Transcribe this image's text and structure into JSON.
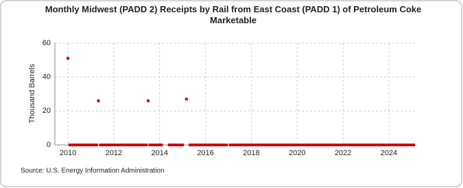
{
  "chart_data": {
    "type": "scatter",
    "title": "Monthly Midwest (PADD 2) Receipts by Rail from East Coast (PADD 1) of Petroleum Coke Marketable",
    "y_label": "Thousand Barrels",
    "source": "Source: U.S. Energy Information Administration",
    "color": "#cc0000",
    "grid": true,
    "xlim": [
      2009.43,
      2025.2
    ],
    "xticks": [
      2010,
      2012,
      2014,
      2016,
      2018,
      2020,
      2022,
      2024
    ],
    "ylim": [
      0,
      60
    ],
    "yticks": [
      0,
      20,
      40,
      60
    ],
    "x": [
      2010,
      2010.08,
      2010.17,
      2010.25,
      2010.33,
      2010.42,
      2010.5,
      2010.58,
      2010.67,
      2010.75,
      2010.83,
      2010.92,
      2011,
      2011.08,
      2011.17,
      2011.25,
      2011.33,
      2011.42,
      2011.5,
      2011.58,
      2011.67,
      2011.75,
      2011.83,
      2011.92,
      2012,
      2012.08,
      2012.17,
      2012.25,
      2012.33,
      2012.42,
      2012.5,
      2012.58,
      2012.67,
      2012.75,
      2012.83,
      2012.92,
      2013,
      2013.08,
      2013.17,
      2013.25,
      2013.33,
      2013.42,
      2013.5,
      2013.58,
      2013.67,
      2013.75,
      2013.83,
      2013.92,
      2014,
      2014.08,
      2014.42,
      2014.5,
      2014.58,
      2014.67,
      2014.75,
      2014.83,
      2014.92,
      2015,
      2015.17,
      2015.33,
      2015.42,
      2015.5,
      2015.58,
      2015.67,
      2015.75,
      2015.83,
      2015.92,
      2016,
      2016.08,
      2016.17,
      2016.25,
      2016.33,
      2016.42,
      2016.5,
      2016.58,
      2016.67,
      2016.75,
      2016.83,
      2016.92,
      2017.08,
      2017.17,
      2017.25,
      2017.33,
      2017.42,
      2017.5,
      2017.58,
      2017.67,
      2017.75,
      2017.83,
      2017.92,
      2018,
      2018.08,
      2018.17,
      2018.25,
      2018.33,
      2018.42,
      2018.5,
      2018.58,
      2018.67,
      2018.75,
      2018.83,
      2018.92,
      2019,
      2019.08,
      2019.17,
      2019.25,
      2019.33,
      2019.42,
      2019.5,
      2019.58,
      2019.67,
      2019.75,
      2019.83,
      2019.92,
      2020,
      2020.08,
      2020.17,
      2020.25,
      2020.33,
      2020.42,
      2020.5,
      2020.58,
      2020.67,
      2020.75,
      2020.83,
      2020.92,
      2021,
      2021.08,
      2021.17,
      2021.25,
      2021.33,
      2021.42,
      2021.5,
      2021.58,
      2021.67,
      2021.75,
      2021.83,
      2021.92,
      2022,
      2022.08,
      2022.17,
      2022.25,
      2022.33,
      2022.42,
      2022.5,
      2022.58,
      2022.67,
      2022.75,
      2022.83,
      2022.92,
      2023,
      2023.08,
      2023.17,
      2023.25,
      2023.33,
      2023.42,
      2023.5,
      2023.58,
      2023.67,
      2023.75,
      2023.83,
      2023.92,
      2024,
      2024.08,
      2024.17,
      2024.25,
      2024.33,
      2024.42,
      2024.5,
      2024.58,
      2024.67,
      2024.75,
      2024.83,
      2024.92,
      2025,
      2025.08
    ],
    "values": [
      51,
      0,
      0,
      0,
      0,
      0,
      0,
      0,
      0,
      0,
      0,
      0,
      0,
      0,
      0,
      0,
      26,
      0,
      0,
      0,
      0,
      0,
      0,
      0,
      0,
      0,
      0,
      0,
      0,
      0,
      0,
      0,
      0,
      0,
      0,
      0,
      0,
      0,
      0,
      0,
      0,
      0,
      26,
      0,
      0,
      0,
      0,
      0,
      0,
      0,
      0,
      0,
      0,
      0,
      0,
      0,
      0,
      0,
      27,
      0,
      0,
      0,
      0,
      0,
      0,
      0,
      0,
      0,
      0,
      0,
      0,
      0,
      0,
      0,
      0,
      0,
      0,
      0,
      0,
      0,
      0,
      0,
      0,
      0,
      0,
      0,
      0,
      0,
      0,
      0,
      0,
      0,
      0,
      0,
      0,
      0,
      0,
      0,
      0,
      0,
      0,
      0,
      0,
      0,
      0,
      0,
      0,
      0,
      0,
      0,
      0,
      0,
      0,
      0,
      0,
      0,
      0,
      0,
      0,
      0,
      0,
      0,
      0,
      0,
      0,
      0,
      0,
      0,
      0,
      0,
      0,
      0,
      0,
      0,
      0,
      0,
      0,
      0,
      0,
      0,
      0,
      0,
      0,
      0,
      0,
      0,
      0,
      0,
      0,
      0,
      0,
      0,
      0,
      0,
      0,
      0,
      0,
      0,
      0,
      0,
      0,
      0,
      0,
      0,
      0,
      0,
      0,
      0,
      0,
      0,
      0,
      0,
      0,
      0,
      0,
      0
    ]
  }
}
